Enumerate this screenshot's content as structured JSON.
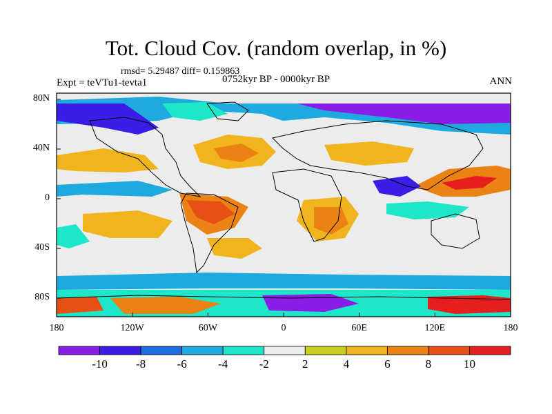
{
  "title": "Tot. Cloud Cov. (random overlap, in %)",
  "stats": "rmsd= 5.29487 diff= 0.159863",
  "experiment": "Expt = teVTu1-tevta1",
  "period": "0752kyr BP - 0000kyr BP",
  "season": "ANN",
  "lat_labels": [
    "80N",
    "40N",
    "0",
    "40S",
    "80S"
  ],
  "lat_values": [
    80,
    40,
    0,
    -40,
    -80
  ],
  "lon_labels": [
    "180",
    "120W",
    "60W",
    "0",
    "60E",
    "120E",
    "180"
  ],
  "lon_values": [
    -180,
    -120,
    -60,
    0,
    60,
    120,
    180
  ],
  "colorbar": {
    "labels": [
      "-10",
      "-8",
      "-6",
      "-4",
      "-2",
      "2",
      "4",
      "6",
      "8",
      "10"
    ],
    "colors": [
      "#8a1ee6",
      "#3b1ee6",
      "#1e6ee6",
      "#1eaade",
      "#1ee6c8",
      "#ececec",
      "#c8d21e",
      "#f0b41e",
      "#eb8214",
      "#e65014",
      "#e61e1e"
    ]
  },
  "colors": {
    "background_field": "#ececec",
    "coast": "#000000"
  }
}
